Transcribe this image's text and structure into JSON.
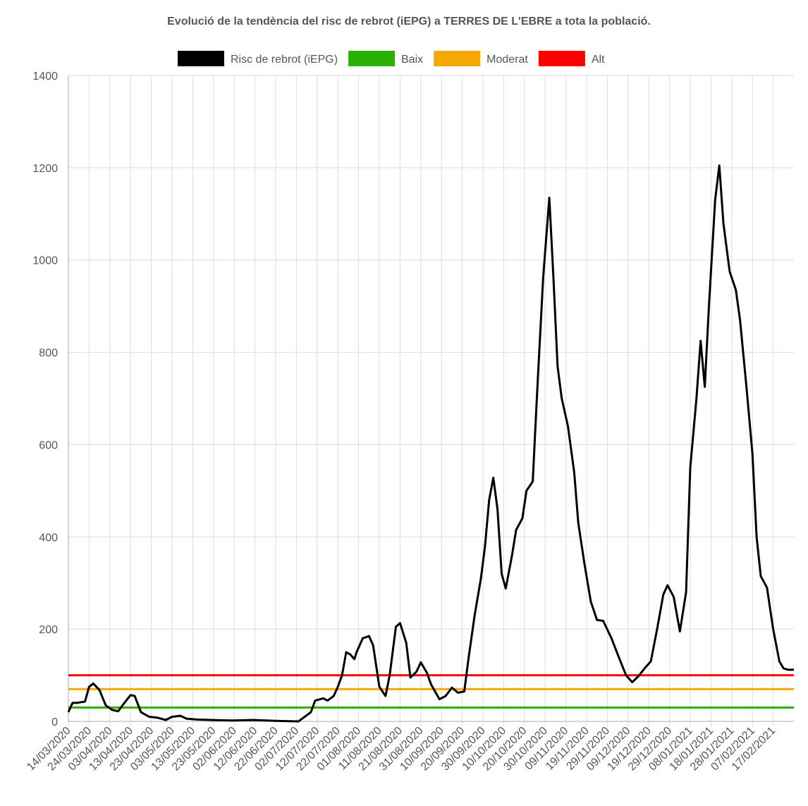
{
  "chart_data": {
    "type": "line",
    "title": "Evolució de la tendència del risc de rebrot (iEPG) a TERRES DE L'EBRE a tota la població.",
    "x": [
      "14/03/2020",
      "16/03/2020",
      "18/03/2020",
      "22/03/2020",
      "24/03/2020",
      "26/03/2020",
      "29/03/2020",
      "01/04/2020",
      "04/04/2020",
      "07/04/2020",
      "10/04/2020",
      "13/04/2020",
      "15/04/2020",
      "18/04/2020",
      "22/04/2020",
      "26/04/2020",
      "30/04/2020",
      "03/05/2020",
      "07/05/2020",
      "10/05/2020",
      "15/05/2020",
      "22/05/2020",
      "01/06/2020",
      "11/06/2020",
      "22/06/2020",
      "03/07/2020",
      "09/07/2020",
      "11/07/2020",
      "15/07/2020",
      "17/07/2020",
      "20/07/2020",
      "22/07/2020",
      "24/07/2020",
      "26/07/2020",
      "28/07/2020",
      "30/07/2020",
      "31/07/2020",
      "03/08/2020",
      "06/08/2020",
      "08/08/2020",
      "11/08/2020",
      "14/08/2020",
      "16/08/2020",
      "19/08/2020",
      "21/08/2020",
      "24/08/2020",
      "26/08/2020",
      "29/08/2020",
      "31/08/2020",
      "03/09/2020",
      "05/09/2020",
      "09/09/2020",
      "12/09/2020",
      "15/09/2020",
      "18/09/2020",
      "21/09/2020",
      "23/09/2020",
      "26/09/2020",
      "29/09/2020",
      "01/10/2020",
      "03/10/2020",
      "05/10/2020",
      "07/10/2020",
      "09/10/2020",
      "11/10/2020",
      "14/10/2020",
      "16/10/2020",
      "19/10/2020",
      "21/10/2020",
      "24/10/2020",
      "26/10/2020",
      "29/10/2020",
      "01/11/2020",
      "03/11/2020",
      "05/11/2020",
      "07/11/2020",
      "10/11/2020",
      "13/11/2020",
      "15/11/2020",
      "18/11/2020",
      "21/11/2020",
      "24/11/2020",
      "27/11/2020",
      "01/12/2020",
      "04/12/2020",
      "08/12/2020",
      "11/12/2020",
      "14/12/2020",
      "17/12/2020",
      "20/12/2020",
      "23/12/2020",
      "26/12/2020",
      "28/12/2020",
      "31/12/2020",
      "03/01/2021",
      "06/01/2021",
      "08/01/2021",
      "11/01/2021",
      "13/01/2021",
      "15/01/2021",
      "17/01/2021",
      "20/01/2021",
      "22/01/2021",
      "24/01/2021",
      "27/01/2021",
      "30/01/2021",
      "01/02/2021",
      "04/02/2021",
      "07/02/2021",
      "09/02/2021",
      "11/02/2021",
      "14/02/2021",
      "17/02/2021",
      "20/02/2021",
      "22/02/2021",
      "24/02/2021",
      "27/02/2021"
    ],
    "series": [
      {
        "name": "Risc de rebrot (iEPG)",
        "color": "#000000",
        "values": [
          20,
          40,
          40,
          43,
          75,
          82,
          68,
          35,
          25,
          22,
          40,
          57,
          55,
          20,
          10,
          8,
          3,
          10,
          12,
          6,
          4,
          3,
          2,
          3,
          1,
          0,
          20,
          45,
          50,
          45,
          55,
          75,
          100,
          150,
          145,
          135,
          150,
          180,
          185,
          165,
          75,
          55,
          100,
          205,
          213,
          170,
          95,
          108,
          128,
          105,
          80,
          48,
          55,
          73,
          62,
          65,
          135,
          230,
          310,
          380,
          480,
          528,
          460,
          320,
          288,
          360,
          415,
          440,
          500,
          520,
          700,
          960,
          1135,
          960,
          770,
          700,
          640,
          540,
          430,
          340,
          260,
          220,
          218,
          180,
          145,
          100,
          85,
          98,
          115,
          130,
          200,
          275,
          295,
          270,
          195,
          280,
          550,
          700,
          825,
          725,
          900,
          1130,
          1205,
          1080,
          975,
          935,
          870,
          730,
          580,
          400,
          315,
          290,
          200,
          130,
          115,
          112,
          112
        ]
      }
    ],
    "thresholds": [
      {
        "name": "Baix",
        "color": "#2ab000",
        "value": 30
      },
      {
        "name": "Moderat",
        "color": "#f5a800",
        "value": 70
      },
      {
        "name": "Alt",
        "color": "#ff0000",
        "value": 100
      }
    ],
    "xlim": [
      "14/03/2020",
      "27/02/2021"
    ],
    "xticks": [
      "14/03/2020",
      "24/03/2020",
      "03/04/2020",
      "13/04/2020",
      "23/04/2020",
      "03/05/2020",
      "13/05/2020",
      "23/05/2020",
      "02/06/2020",
      "12/06/2020",
      "22/06/2020",
      "02/07/2020",
      "12/07/2020",
      "22/07/2020",
      "01/08/2020",
      "11/08/2020",
      "21/08/2020",
      "31/08/2020",
      "10/09/2020",
      "20/09/2020",
      "30/09/2020",
      "10/10/2020",
      "20/10/2020",
      "30/10/2020",
      "09/11/2020",
      "19/11/2020",
      "29/11/2020",
      "09/12/2020",
      "19/12/2020",
      "29/12/2020",
      "08/01/2021",
      "18/01/2021",
      "28/01/2021",
      "07/02/2021",
      "17/02/2021"
    ],
    "ylim": [
      0,
      1400
    ],
    "yticks": [
      0,
      200,
      400,
      600,
      800,
      1000,
      1200,
      1400
    ],
    "grid": true
  }
}
